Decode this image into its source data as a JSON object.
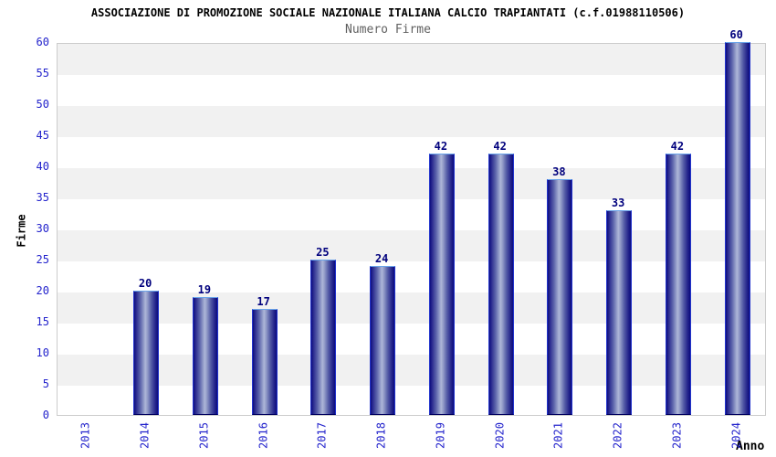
{
  "header": {
    "title": "ASSOCIAZIONE DI PROMOZIONE SOCIALE NAZIONALE ITALIANA CALCIO TRAPIANTATI (c.f.01988110506)",
    "subtitle": "Numero Firme"
  },
  "axes": {
    "y_title": "Firme",
    "x_title": "Anno",
    "y_ticks": [
      0,
      5,
      10,
      15,
      20,
      25,
      30,
      35,
      40,
      45,
      50,
      55,
      60
    ]
  },
  "chart_data": {
    "type": "bar",
    "title": "Numero Firme",
    "categories": [
      "2013",
      "2014",
      "2015",
      "2016",
      "2017",
      "2018",
      "2019",
      "2020",
      "2021",
      "2022",
      "2023",
      "2024"
    ],
    "values": [
      0,
      20,
      19,
      17,
      25,
      24,
      42,
      42,
      38,
      33,
      42,
      60
    ],
    "xlabel": "Anno",
    "ylabel": "Firme",
    "ylim": [
      0,
      60
    ],
    "ytick_step": 5,
    "grid": "horizontal-bands",
    "legend": "none",
    "bar_value_labels_shown": true,
    "zero_value_bars_hidden": true
  },
  "colors": {
    "tick_label": "#2323cc",
    "bar_value_label": "#00007d",
    "bar_dark": "#0d0d7e",
    "bar_light": "#aeb6d8",
    "bar_edge": "#2233cc",
    "bar_top_edge": "#6aa4ea",
    "band_gray": "#f1f1f1",
    "band_white": "#ffffff",
    "plot_border": "#cccccc",
    "title_color": "#000000",
    "subtitle_color": "#606060"
  }
}
